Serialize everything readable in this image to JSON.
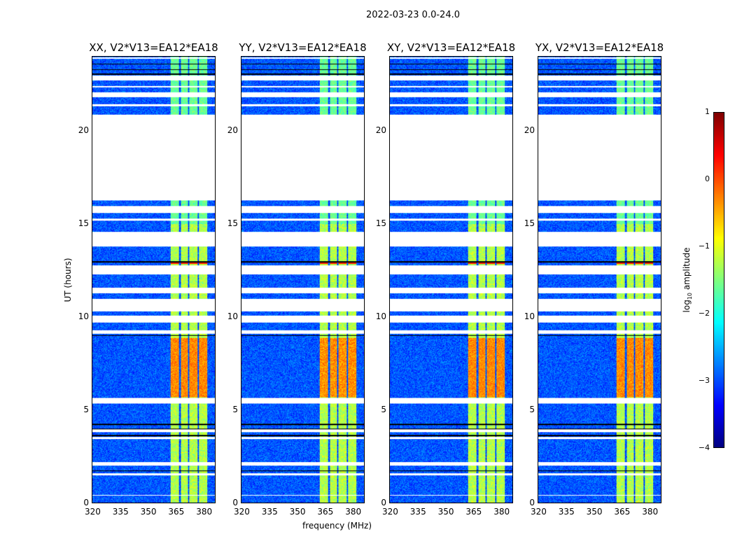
{
  "chart_data": {
    "type": "heatmap",
    "title": "2022-03-23 0.0-24.0",
    "xlabel": "frequency (MHz)",
    "ylabel": "UT (hours)",
    "xlim": [
      320,
      386.7
    ],
    "ylim": [
      0,
      24
    ],
    "xticks": [
      "320",
      "335",
      "350",
      "365",
      "380"
    ],
    "yticks": [
      "0",
      "5",
      "10",
      "15",
      "20"
    ],
    "panels": [
      {
        "title": "XX, V2*V13=EA12*EA18",
        "gain": 1.0
      },
      {
        "title": "YY, V2*V13=EA12*EA18",
        "gain": 1.15
      },
      {
        "title": "XY, V2*V13=EA12*EA18",
        "gain": 1.0
      },
      {
        "title": "YX, V2*V13=EA12*EA18",
        "gain": 1.05
      }
    ],
    "colorbar": {
      "label": "log10 amplitude",
      "label_main": "log",
      "label_sub": "10",
      "label_rest": " amplitude",
      "vmin": -4,
      "vmax": 1,
      "ticks": [
        "1",
        "0",
        "−1",
        "−2",
        "−3",
        "−4"
      ],
      "colormap": "jet"
    },
    "rfi_bands_mhz": [
      [
        362.3,
        366.8
      ],
      [
        368,
        371.7
      ],
      [
        372.5,
        377
      ],
      [
        378,
        382.5
      ]
    ],
    "flagged_hours": [
      [
        23.9,
        24
      ],
      [
        22.75,
        23.0
      ],
      [
        22.35,
        22.45
      ],
      [
        21.85,
        22.1
      ],
      [
        21.35,
        21.45
      ],
      [
        16.3,
        20.9
      ],
      [
        15.6,
        16.0
      ],
      [
        15.2,
        15.3
      ],
      [
        13.8,
        14.6
      ],
      [
        12.3,
        12.8
      ],
      [
        11.3,
        11.6
      ],
      [
        10.3,
        11.0
      ],
      [
        9.7,
        10.1
      ],
      [
        9.1,
        9.3
      ],
      [
        5.35,
        5.65
      ],
      [
        3.8,
        3.95
      ],
      [
        3.45,
        3.55
      ],
      [
        2.0,
        2.2
      ],
      [
        1.5,
        1.6
      ],
      [
        0.4,
        0.45
      ]
    ],
    "dark_rows_hours": [
      [
        23.6,
        23.65
      ],
      [
        23.3,
        23.35
      ],
      [
        23.05,
        23.1
      ],
      [
        15.95,
        16.0
      ],
      [
        12.95,
        13.0
      ],
      [
        9.0,
        9.05
      ],
      [
        4.2,
        4.25
      ],
      [
        3.95,
        4.0
      ],
      [
        3.6,
        3.65
      ],
      [
        1.7,
        1.75
      ]
    ],
    "strong_rfi_hours": [
      [
        5.7,
        8.9
      ]
    ]
  }
}
